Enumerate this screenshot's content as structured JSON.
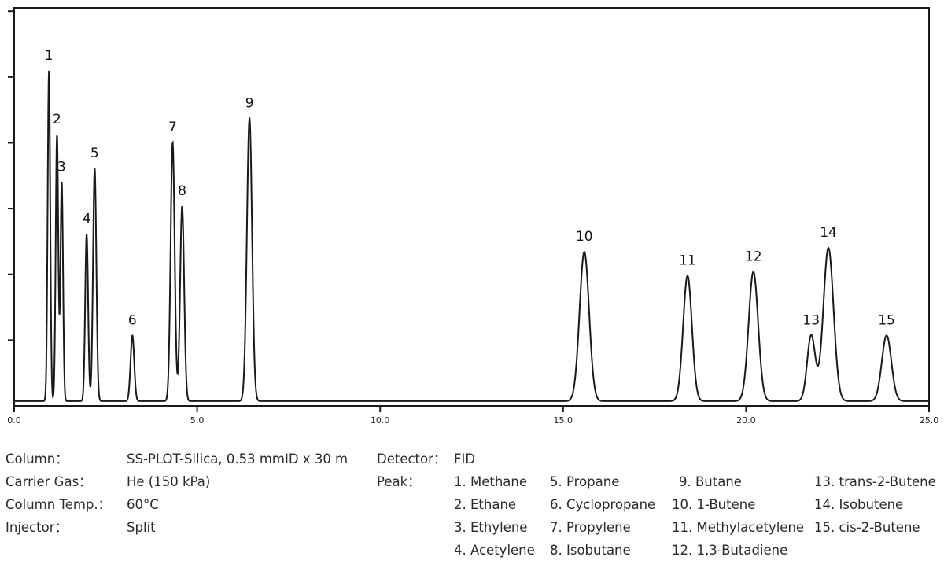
{
  "chart_data": {
    "type": "line",
    "title": "",
    "xlabel": "",
    "ylabel": "",
    "xlim": [
      0.0,
      25.0
    ],
    "x_ticks": [
      "0.0",
      "5.0",
      "10.0",
      "15.0",
      "20.0",
      "25.0"
    ],
    "y_ticks_count": 6,
    "grid": false,
    "line_color": "#1a1a1a",
    "peaks": [
      {
        "label": "1",
        "rt": 0.95,
        "height": 0.83,
        "width": 0.035
      },
      {
        "label": "2",
        "rt": 1.17,
        "height": 0.67,
        "width": 0.035
      },
      {
        "label": "3",
        "rt": 1.3,
        "height": 0.55,
        "width": 0.035
      },
      {
        "label": "4",
        "rt": 1.98,
        "height": 0.42,
        "width": 0.04
      },
      {
        "label": "5",
        "rt": 2.2,
        "height": 0.585,
        "width": 0.045
      },
      {
        "label": "6",
        "rt": 3.23,
        "height": 0.165,
        "width": 0.05
      },
      {
        "label": "7",
        "rt": 4.33,
        "height": 0.65,
        "width": 0.055
      },
      {
        "label": "8",
        "rt": 4.59,
        "height": 0.49,
        "width": 0.055
      },
      {
        "label": "9",
        "rt": 6.43,
        "height": 0.71,
        "width": 0.07
      },
      {
        "label": "10",
        "rt": 15.58,
        "height": 0.375,
        "width": 0.13
      },
      {
        "label": "11",
        "rt": 18.4,
        "height": 0.315,
        "width": 0.12
      },
      {
        "label": "12",
        "rt": 20.2,
        "height": 0.325,
        "width": 0.13
      },
      {
        "label": "13",
        "rt": 21.78,
        "height": 0.165,
        "width": 0.11
      },
      {
        "label": "14",
        "rt": 22.25,
        "height": 0.385,
        "width": 0.14
      },
      {
        "label": "15",
        "rt": 23.84,
        "height": 0.165,
        "width": 0.13
      }
    ],
    "baseline": 0.012
  },
  "conditions": {
    "column_label": "Column：",
    "column_value": "SS-PLOT-Silica, 0.53 mmID x 30 m",
    "carrier_label": "Carrier Gas：",
    "carrier_value": "He (150 kPa)",
    "temp_label": "Column Temp.：",
    "temp_value": "60°C",
    "injector_label": "Injector：",
    "injector_value": "Split",
    "detector_label": "Detector：",
    "detector_value": "FID",
    "peak_label": "Peak："
  },
  "peak_list": [
    [
      "1. Methane",
      "2. Ethane",
      "3. Ethylene",
      "4. Acetylene"
    ],
    [
      "5. Propane",
      "6. Cyclopropane",
      "7. Propylene",
      "8. Isobutane"
    ],
    [
      "9. Butane",
      "10. 1-Butene",
      "11. Methylacetylene",
      "12. 1,3-Butadiene"
    ],
    [
      "13. trans-2-Butene",
      "14. Isobutene",
      "15. cis-2-Butene"
    ]
  ]
}
